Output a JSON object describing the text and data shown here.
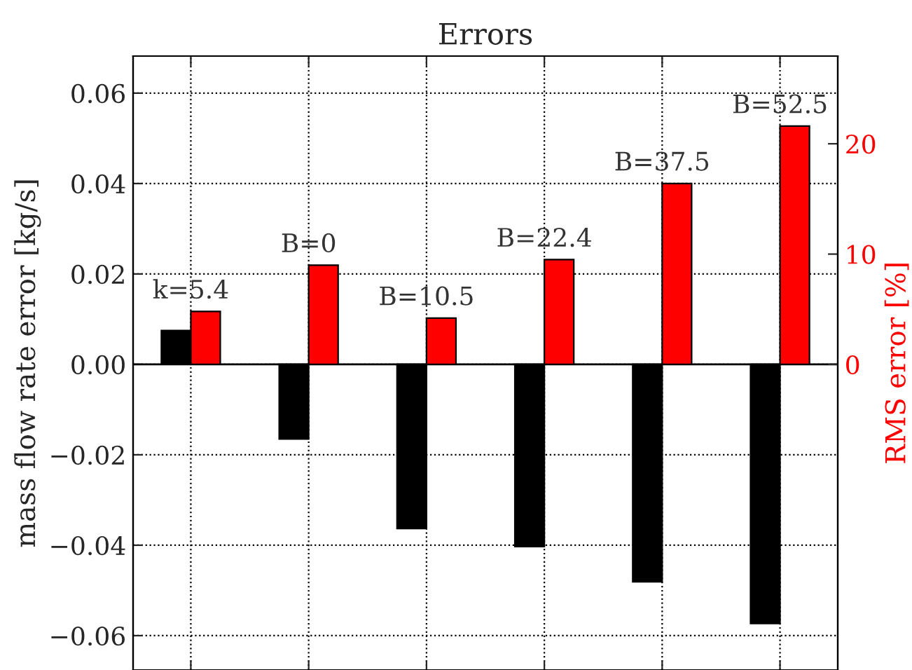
{
  "chart_data": {
    "type": "bar",
    "title": "Errors",
    "ylabel": "mass flow rate error [kg/s]",
    "y2label": "RMS error [%]",
    "categories": [
      null,
      null,
      null,
      null,
      null,
      null
    ],
    "series": [
      {
        "color": "#000000",
        "values": [
          0.0075,
          -0.0165,
          -0.0363,
          -0.0403,
          -0.0481,
          -0.0573
        ]
      },
      {
        "color": "#ff0000",
        "axis": "y2",
        "values": [
          4.8,
          9.0,
          4.2,
          9.5,
          16.4,
          21.6
        ]
      }
    ],
    "annotations": [
      "k=5.4",
      "B=0",
      "B=10.5",
      "B=22.4",
      "B=37.5",
      "B=52.5"
    ],
    "ylim": [
      -0.0676,
      0.0682
    ],
    "yticks": [
      {
        "value": -0.06,
        "label": "−0.06"
      },
      {
        "value": -0.04,
        "label": "−0.04"
      },
      {
        "value": -0.02,
        "label": "−0.02"
      },
      {
        "value": 0.0,
        "label": "0.00"
      },
      {
        "value": 0.02,
        "label": "0.02"
      },
      {
        "value": 0.04,
        "label": "0.04"
      },
      {
        "value": 0.06,
        "label": "0.06"
      }
    ],
    "y2lim": [
      -27.7,
      27.95
    ],
    "y2ticks": [
      0,
      10,
      20
    ],
    "grid": true
  }
}
